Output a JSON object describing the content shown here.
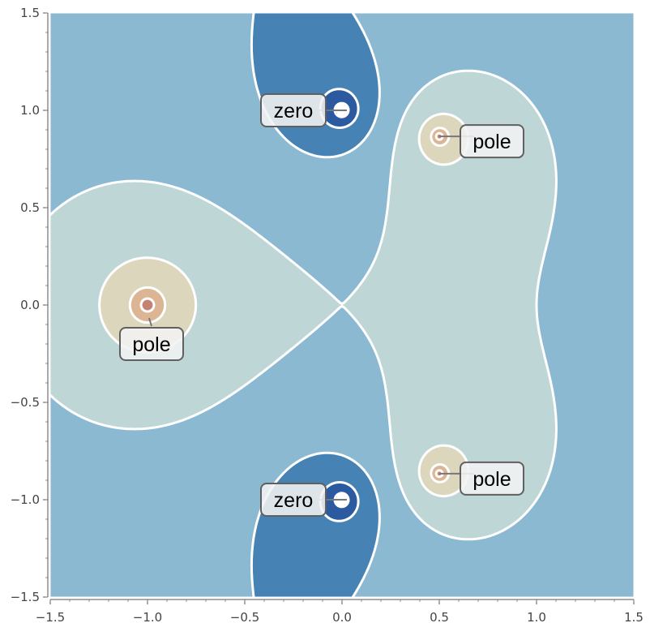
{
  "chart_data": {
    "type": "contour",
    "function_roots": {
      "zeros": [
        {
          "x": 0.0,
          "y": 1.0
        },
        {
          "x": 0.0,
          "y": -1.0
        }
      ],
      "poles": [
        {
          "x": -1.0,
          "y": 0.0
        },
        {
          "x": 0.5,
          "y": 0.866
        },
        {
          "x": 0.5,
          "y": -0.866
        }
      ]
    },
    "xlim": [
      -1.5,
      1.5
    ],
    "ylim": [
      -1.5,
      1.5
    ],
    "x_ticks": [
      -1.5,
      -1.0,
      -0.5,
      0.0,
      0.5,
      1.0,
      1.5
    ],
    "y_ticks": [
      -1.5,
      -1.0,
      -0.5,
      0.0,
      0.5,
      1.0,
      1.5
    ],
    "x_tick_labels": [
      "−1.5",
      "−1.0",
      "−0.5",
      "0.0",
      "0.5",
      "1.0",
      "1.5"
    ],
    "y_tick_labels": [
      "−1.5",
      "−1.0",
      "−0.5",
      "0.0",
      "0.5",
      "1.0",
      "1.5"
    ],
    "contour_levels": [
      -3,
      -2,
      -1,
      0,
      1,
      2,
      3
    ],
    "level_colors": [
      "#ffffff",
      "#2c5aa0",
      "#4682b4",
      "#8bb9d1",
      "#bed6d6",
      "#dcd6bd",
      "#dcb595",
      "#c48372",
      "#9c4950",
      "#ffffff"
    ],
    "annotations": [
      {
        "label": "zero",
        "x": 0.0,
        "y": 1.0
      },
      {
        "label": "zero",
        "x": 0.0,
        "y": -1.0
      },
      {
        "label": "pole",
        "x": -1.0,
        "y": 0.0
      },
      {
        "label": "pole",
        "x": 0.5,
        "y": 0.866
      },
      {
        "label": "pole",
        "x": 0.5,
        "y": -0.866
      }
    ],
    "grid": false
  }
}
